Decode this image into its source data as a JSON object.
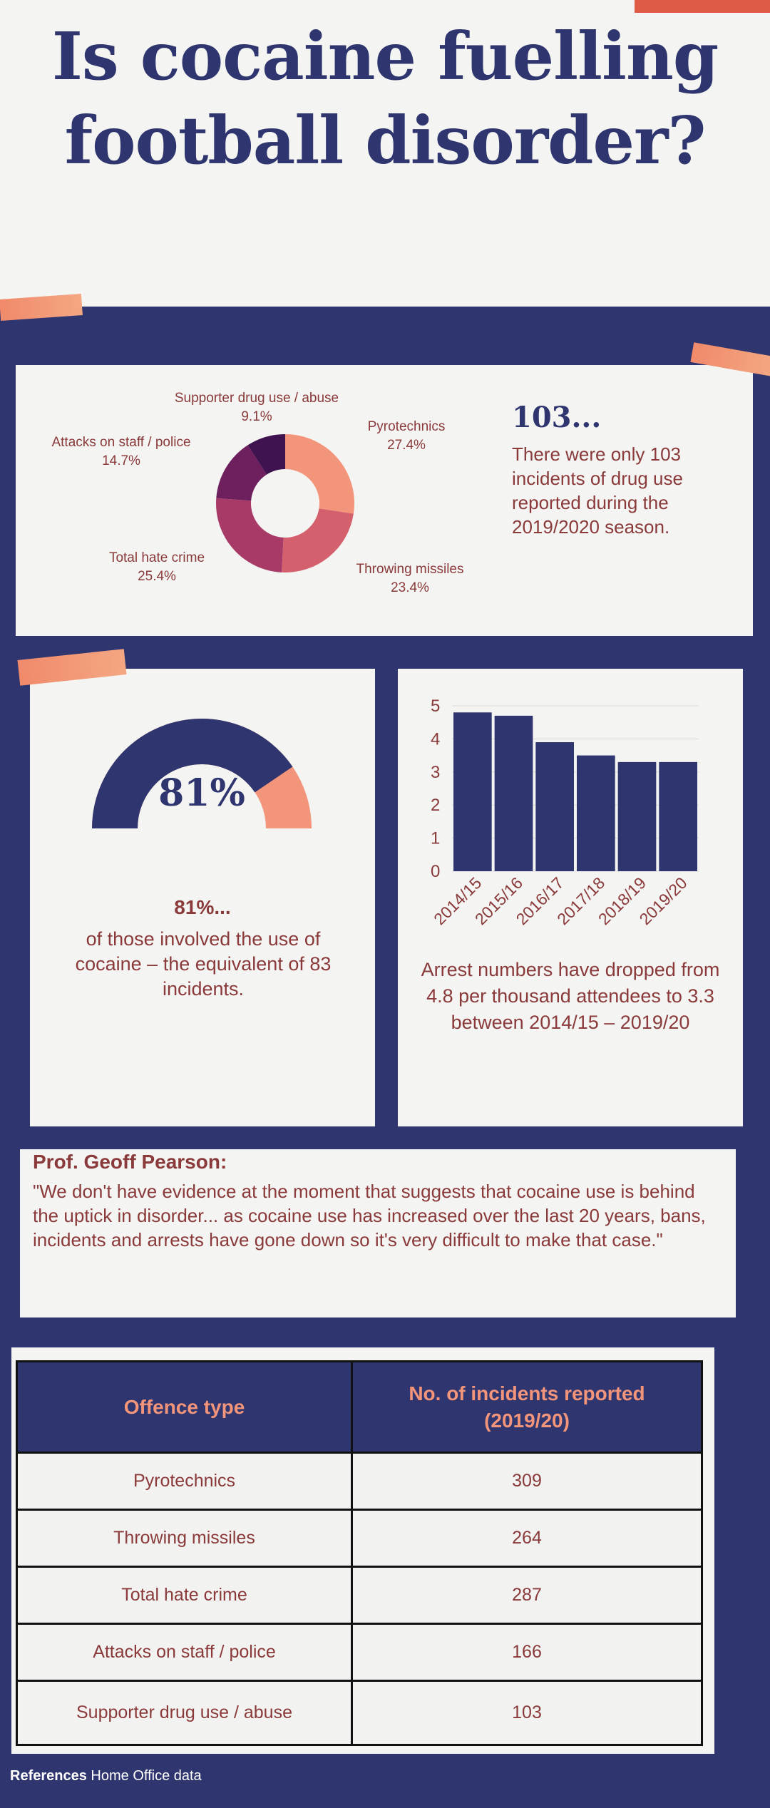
{
  "headline": {
    "line1": "Is cocaine fuelling",
    "line2": "football disorder?"
  },
  "donut": {
    "labels": [
      {
        "name": "Pyrotechnics",
        "pct": "27.4%"
      },
      {
        "name": "Throwing missiles",
        "pct": "23.4%"
      },
      {
        "name": "Total hate crime",
        "pct": "25.4%"
      },
      {
        "name": "Attacks on staff / police",
        "pct": "14.7%"
      },
      {
        "name": "Supporter drug use / abuse",
        "pct": "9.1%"
      }
    ]
  },
  "stat103": {
    "heading": "103...",
    "text": "There were only 103 incidents of drug use reported during the 2019/2020 season."
  },
  "gauge": {
    "value_label": "81%",
    "fraction": 0.81,
    "heading": "81%...",
    "text": "of those involved the use of cocaine – the equivalent of 83 incidents."
  },
  "arrests": {
    "text": "Arrest numbers have dropped from 4.8 per thousand attendees to 3.3 between 2014/15 – 2019/20"
  },
  "quote": {
    "author": "Prof. Geoff Pearson:",
    "text": "\"We don't have evidence at the moment that suggests that cocaine use is behind the uptick in disorder... as cocaine use has increased over the last 20 years, bans, incidents and arrests have gone down so it's very difficult to make that case.\""
  },
  "table": {
    "headers": [
      "Offence type",
      "No. of incidents reported (2019/20)"
    ],
    "rows": [
      [
        "Pyrotechnics",
        "309"
      ],
      [
        "Throwing missiles",
        "264"
      ],
      [
        "Total hate crime",
        "287"
      ],
      [
        "Attacks on staff / police",
        "166"
      ],
      [
        "Supporter drug use / abuse",
        "103"
      ]
    ]
  },
  "references": {
    "label": "References",
    "text": "Home Office data"
  },
  "chart_data": [
    {
      "type": "pie",
      "categories": [
        "Pyrotechnics",
        "Throwing missiles",
        "Total hate crime",
        "Attacks on staff / police",
        "Supporter drug use / abuse"
      ],
      "values": [
        27.4,
        23.4,
        25.4,
        14.7,
        9.1
      ],
      "colors": [
        "#f3957a",
        "#d4606d",
        "#a83a68",
        "#6e1f5e",
        "#3f1250"
      ]
    },
    {
      "type": "bar",
      "categories": [
        "2014/15",
        "2015/16",
        "2016/17",
        "2017/18",
        "2018/19",
        "2019/20"
      ],
      "values": [
        4.8,
        4.7,
        3.9,
        3.5,
        3.3,
        3.3
      ],
      "ylim": [
        0,
        5
      ],
      "yticks": [
        "0",
        "1",
        "2",
        "3",
        "4",
        "5"
      ],
      "color": "#2f356e"
    }
  ]
}
